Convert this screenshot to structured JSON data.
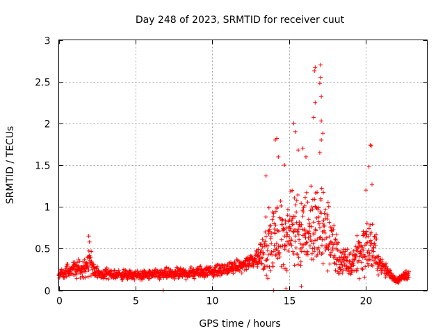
{
  "chart_data": {
    "type": "scatter",
    "title": "Day 248 of 2023, SRMTID for receiver cuut",
    "xlabel": "GPS time / hours",
    "ylabel": "SRMTID / TECUs",
    "xlim": [
      0,
      24
    ],
    "ylim": [
      0,
      3
    ],
    "x_ticks": [
      0,
      5,
      10,
      15,
      20
    ],
    "x_tick_labels": [
      "0",
      "5",
      "10",
      "15",
      "20"
    ],
    "y_ticks": [
      0,
      0.5,
      1,
      1.5,
      2,
      2.5,
      3
    ],
    "y_tick_labels": [
      "0",
      "0.5",
      "1",
      "1.5",
      "2",
      "2.5",
      "3"
    ],
    "grid": true,
    "marker": "+",
    "marker_color": "#ff0000",
    "x_data_end": 22.8,
    "envelope": [
      {
        "x": 0.0,
        "base": 0.18,
        "spread": 0.08
      },
      {
        "x": 0.8,
        "base": 0.25,
        "spread": 0.15
      },
      {
        "x": 1.5,
        "base": 0.25,
        "spread": 0.15
      },
      {
        "x": 2.0,
        "base": 0.35,
        "spread": 0.25
      },
      {
        "x": 2.5,
        "base": 0.2,
        "spread": 0.1
      },
      {
        "x": 5.0,
        "base": 0.18,
        "spread": 0.08
      },
      {
        "x": 8.0,
        "base": 0.2,
        "spread": 0.1
      },
      {
        "x": 10.5,
        "base": 0.24,
        "spread": 0.1
      },
      {
        "x": 12.0,
        "base": 0.3,
        "spread": 0.1
      },
      {
        "x": 13.0,
        "base": 0.4,
        "spread": 0.2
      },
      {
        "x": 13.5,
        "base": 0.55,
        "spread": 0.5
      },
      {
        "x": 14.5,
        "base": 0.65,
        "spread": 0.6
      },
      {
        "x": 15.5,
        "base": 0.75,
        "spread": 0.7
      },
      {
        "x": 16.5,
        "base": 0.75,
        "spread": 0.7
      },
      {
        "x": 17.5,
        "base": 0.7,
        "spread": 0.7
      },
      {
        "x": 18.3,
        "base": 0.35,
        "spread": 0.25
      },
      {
        "x": 19.0,
        "base": 0.3,
        "spread": 0.25
      },
      {
        "x": 19.5,
        "base": 0.45,
        "spread": 0.4
      },
      {
        "x": 20.3,
        "base": 0.55,
        "spread": 0.5
      },
      {
        "x": 21.0,
        "base": 0.3,
        "spread": 0.15
      },
      {
        "x": 22.0,
        "base": 0.12,
        "spread": 0.05
      },
      {
        "x": 22.8,
        "base": 0.2,
        "spread": 0.1
      }
    ],
    "spikes": [
      {
        "x": 1.95,
        "y": 0.65
      },
      {
        "x": 2.0,
        "y": 0.58
      },
      {
        "x": 6.8,
        "y": 0.0
      },
      {
        "x": 13.5,
        "y": 1.37
      },
      {
        "x": 14.1,
        "y": 1.8
      },
      {
        "x": 14.2,
        "y": 1.82
      },
      {
        "x": 14.3,
        "y": 1.6
      },
      {
        "x": 14.7,
        "y": 1.5
      },
      {
        "x": 15.3,
        "y": 2.0
      },
      {
        "x": 15.4,
        "y": 1.9
      },
      {
        "x": 15.6,
        "y": 1.68
      },
      {
        "x": 15.9,
        "y": 1.7
      },
      {
        "x": 16.1,
        "y": 1.6
      },
      {
        "x": 16.6,
        "y": 2.07
      },
      {
        "x": 16.7,
        "y": 2.25
      },
      {
        "x": 16.65,
        "y": 2.63
      },
      {
        "x": 16.7,
        "y": 2.67
      },
      {
        "x": 17.0,
        "y": 2.48
      },
      {
        "x": 17.05,
        "y": 2.7
      },
      {
        "x": 17.05,
        "y": 2.55
      },
      {
        "x": 17.1,
        "y": 2.32
      },
      {
        "x": 17.1,
        "y": 2.03
      },
      {
        "x": 17.1,
        "y": 1.8
      },
      {
        "x": 17.2,
        "y": 1.88
      },
      {
        "x": 17.0,
        "y": 1.65
      },
      {
        "x": 20.3,
        "y": 1.74
      },
      {
        "x": 20.35,
        "y": 1.73
      },
      {
        "x": 20.2,
        "y": 1.48
      },
      {
        "x": 20.4,
        "y": 1.27
      },
      {
        "x": 20.0,
        "y": 1.2
      },
      {
        "x": 14.0,
        "y": 0.0
      },
      {
        "x": 14.8,
        "y": 0.02
      },
      {
        "x": 15.8,
        "y": 0.05
      }
    ]
  }
}
